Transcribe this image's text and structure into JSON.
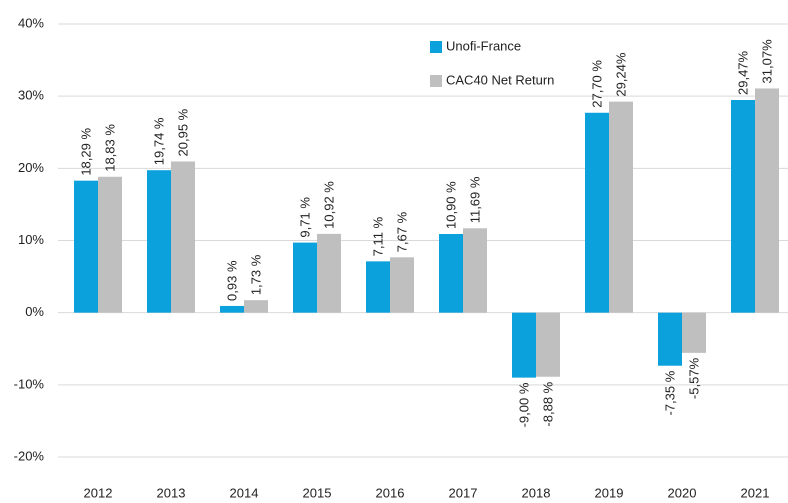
{
  "chart_data": {
    "type": "bar",
    "categories": [
      "2012",
      "2013",
      "2014",
      "2015",
      "2016",
      "2017",
      "2018",
      "2019",
      "2020",
      "2021"
    ],
    "series": [
      {
        "name": "Unofi-France",
        "color": "#0aa1dd",
        "values": [
          18.29,
          19.74,
          0.93,
          9.71,
          7.11,
          10.9,
          -9.0,
          27.7,
          -7.35,
          29.47
        ],
        "value_labels": [
          "18,29 %",
          "19,74 %",
          "0,93 %",
          "9,71 %",
          "7,11 %",
          "10,90 %",
          "-9,00 %",
          "27,70 %",
          "-7,35 %",
          "29,47%"
        ]
      },
      {
        "name": "CAC40 Net Return",
        "color": "#bfbfbf",
        "values": [
          18.83,
          20.95,
          1.73,
          10.92,
          7.67,
          11.69,
          -8.88,
          29.24,
          -5.57,
          31.07
        ],
        "value_labels": [
          "18,83 %",
          "20,95 %",
          "1,73 %",
          "10,92 %",
          "7,67 %",
          "11,69 %",
          "-8,88 %",
          "29,24%",
          "-5,57%",
          "31,07%"
        ]
      }
    ],
    "ylim": [
      -20,
      40
    ],
    "yticks": [
      {
        "value": -20,
        "label": "-20%"
      },
      {
        "value": -10,
        "label": "-10%"
      },
      {
        "value": 0,
        "label": "0%"
      },
      {
        "value": 10,
        "label": "10%"
      },
      {
        "value": 20,
        "label": "20%"
      },
      {
        "value": 30,
        "label": "30%"
      },
      {
        "value": 40,
        "label": "40%"
      }
    ],
    "grid": true,
    "legend": "top"
  }
}
